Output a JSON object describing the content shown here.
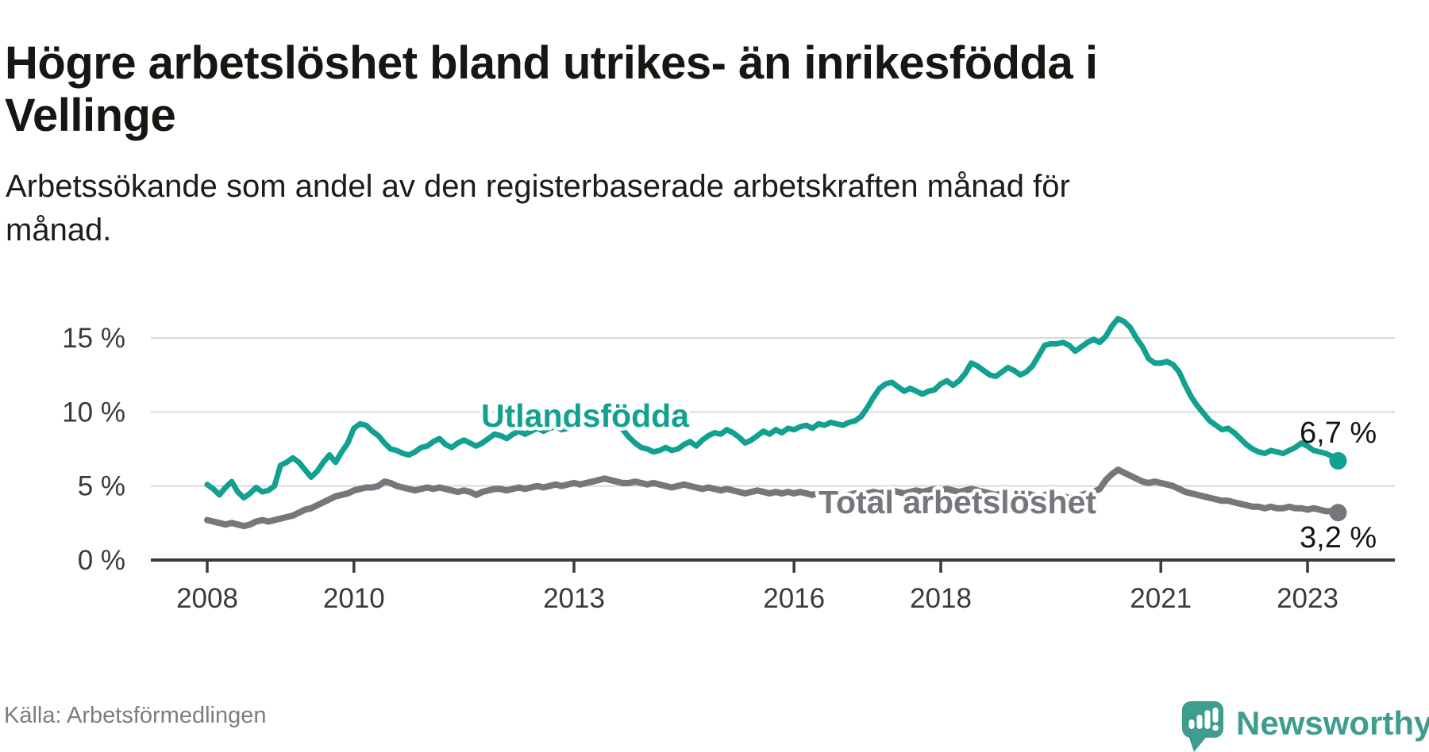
{
  "header": {
    "title_line1": "Högre arbetslöshet bland utrikes- än inrikesfödda i",
    "title_line2": "Vellinge",
    "subtitle_line1": "Arbetssökande som andel av den registerbaserade arbetskraften månad för",
    "subtitle_line2": "månad."
  },
  "footer": {
    "source": "Källa: Arbetsförmedlingen",
    "brand": "Newsworthy",
    "brand_color": "#3f9d8f",
    "logo_icon": "newsworthy-chart-bubble-icon"
  },
  "chart_data": {
    "type": "line",
    "title": "Högre arbetslöshet bland utrikes- än inrikesfödda i Vellinge",
    "subtitle": "Arbetssökande som andel av den registerbaserade arbetskraften månad för månad.",
    "x_start": 2008.0,
    "x_step": 0.0833333,
    "xlim": [
      2007.25,
      2024.2
    ],
    "ylim": [
      0,
      20
    ],
    "grid": true,
    "x_axis": {
      "ticks": [
        2008,
        2010,
        2013,
        2016,
        2018,
        2021,
        2023
      ]
    },
    "y_axis": {
      "ticks": [
        0,
        5,
        10,
        15
      ],
      "suffix": " %"
    },
    "colors": {
      "grid": "#d9d9d9",
      "axis": "#3b3b3b",
      "tick_label": "#3a3a3a",
      "end_label": "#141414"
    },
    "series": [
      {
        "id": "utlandsfodda",
        "name": "Utlandsfödda",
        "color": "#12a090",
        "end_label": "6,7 %",
        "values": [
          5.1,
          4.8,
          4.4,
          4.9,
          5.3,
          4.6,
          4.2,
          4.5,
          4.9,
          4.6,
          4.7,
          5.0,
          6.4,
          6.6,
          6.9,
          6.6,
          6.1,
          5.6,
          6.0,
          6.6,
          7.1,
          6.6,
          7.3,
          7.9,
          8.9,
          9.2,
          9.1,
          8.7,
          8.4,
          7.9,
          7.5,
          7.4,
          7.2,
          7.1,
          7.3,
          7.6,
          7.7,
          8.0,
          8.2,
          7.8,
          7.6,
          7.9,
          8.1,
          7.9,
          7.7,
          7.9,
          8.2,
          8.5,
          8.4,
          8.2,
          8.5,
          8.7,
          8.5,
          8.7,
          8.9,
          8.7,
          8.9,
          9.0,
          8.8,
          8.9,
          9.1,
          9.3,
          9.1,
          9.0,
          9.3,
          9.5,
          9.4,
          9.2,
          8.8,
          8.3,
          7.9,
          7.6,
          7.5,
          7.3,
          7.4,
          7.6,
          7.4,
          7.5,
          7.8,
          8.0,
          7.7,
          8.1,
          8.4,
          8.6,
          8.5,
          8.8,
          8.6,
          8.3,
          7.9,
          8.1,
          8.4,
          8.7,
          8.5,
          8.8,
          8.6,
          8.9,
          8.8,
          9.0,
          9.1,
          8.9,
          9.2,
          9.1,
          9.3,
          9.2,
          9.1,
          9.3,
          9.4,
          9.7,
          10.3,
          11.0,
          11.6,
          11.9,
          12.0,
          11.7,
          11.4,
          11.6,
          11.4,
          11.2,
          11.4,
          11.5,
          11.9,
          12.1,
          11.8,
          12.1,
          12.6,
          13.3,
          13.1,
          12.8,
          12.5,
          12.4,
          12.7,
          13.0,
          12.8,
          12.5,
          12.7,
          13.1,
          13.8,
          14.5,
          14.6,
          14.6,
          14.7,
          14.5,
          14.1,
          14.4,
          14.7,
          14.9,
          14.7,
          15.1,
          15.8,
          16.3,
          16.1,
          15.7,
          15.0,
          14.4,
          13.6,
          13.3,
          13.3,
          13.4,
          13.2,
          12.7,
          11.8,
          11.0,
          10.4,
          9.9,
          9.4,
          9.1,
          8.8,
          8.9,
          8.6,
          8.2,
          7.8,
          7.5,
          7.3,
          7.2,
          7.4,
          7.3,
          7.2,
          7.4,
          7.6,
          7.9,
          7.7,
          7.4,
          7.3,
          7.2,
          7.0,
          6.7
        ]
      },
      {
        "id": "total-arbetsloshet",
        "name": "Total arbetslöshet",
        "color": "#77767c",
        "end_label": "3,2 %",
        "values": [
          2.7,
          2.6,
          2.5,
          2.4,
          2.5,
          2.4,
          2.3,
          2.4,
          2.6,
          2.7,
          2.6,
          2.7,
          2.8,
          2.9,
          3.0,
          3.2,
          3.4,
          3.5,
          3.7,
          3.9,
          4.1,
          4.3,
          4.4,
          4.5,
          4.7,
          4.8,
          4.9,
          4.9,
          5.0,
          5.3,
          5.2,
          5.0,
          4.9,
          4.8,
          4.7,
          4.8,
          4.9,
          4.8,
          4.9,
          4.8,
          4.7,
          4.6,
          4.7,
          4.6,
          4.4,
          4.6,
          4.7,
          4.8,
          4.8,
          4.7,
          4.8,
          4.9,
          4.8,
          4.9,
          5.0,
          4.9,
          5.0,
          5.1,
          5.0,
          5.1,
          5.2,
          5.1,
          5.2,
          5.3,
          5.4,
          5.5,
          5.4,
          5.3,
          5.2,
          5.2,
          5.3,
          5.2,
          5.1,
          5.2,
          5.1,
          5.0,
          4.9,
          5.0,
          5.1,
          5.0,
          4.9,
          4.8,
          4.9,
          4.8,
          4.7,
          4.8,
          4.7,
          4.6,
          4.5,
          4.6,
          4.7,
          4.6,
          4.5,
          4.6,
          4.5,
          4.6,
          4.5,
          4.6,
          4.5,
          4.4,
          4.5,
          4.4,
          4.5,
          4.4,
          4.3,
          4.4,
          4.5,
          4.4,
          4.5,
          4.6,
          4.5,
          4.6,
          4.7,
          4.6,
          4.5,
          4.6,
          4.7,
          4.6,
          4.7,
          4.8,
          4.7,
          4.8,
          4.7,
          4.6,
          4.7,
          4.8,
          4.7,
          4.6,
          4.5,
          4.4,
          4.5,
          4.6,
          4.5,
          4.4,
          4.5,
          4.4,
          4.3,
          4.4,
          4.5,
          4.4,
          4.3,
          4.2,
          4.3,
          4.4,
          4.5,
          4.6,
          4.8,
          5.4,
          5.8,
          6.1,
          5.9,
          5.7,
          5.5,
          5.3,
          5.2,
          5.3,
          5.2,
          5.1,
          5.0,
          4.8,
          4.6,
          4.5,
          4.4,
          4.3,
          4.2,
          4.1,
          4.0,
          4.0,
          3.9,
          3.8,
          3.7,
          3.6,
          3.6,
          3.5,
          3.6,
          3.5,
          3.5,
          3.6,
          3.5,
          3.5,
          3.4,
          3.5,
          3.4,
          3.3,
          3.3,
          3.2
        ]
      }
    ],
    "legend_position": "inline-labels"
  }
}
